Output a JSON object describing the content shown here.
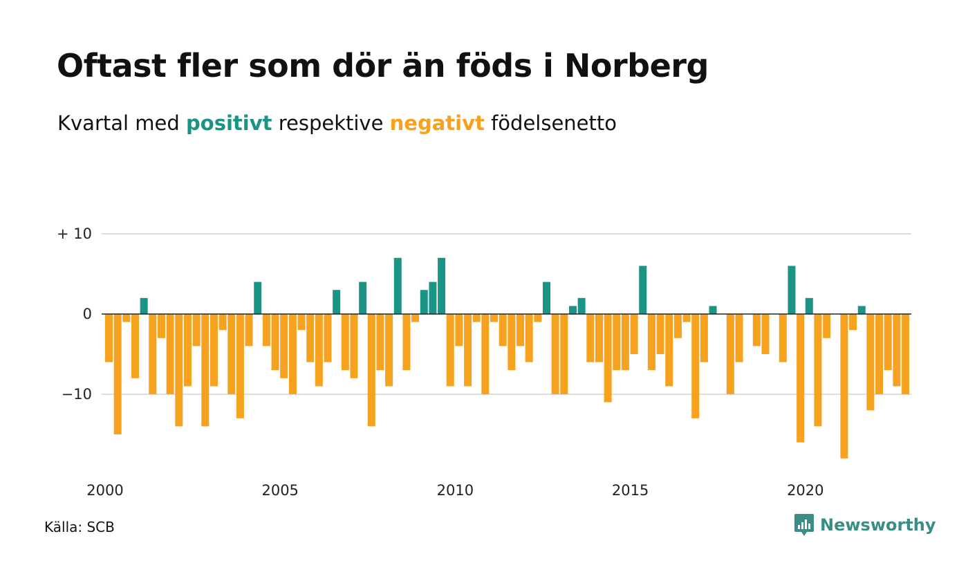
{
  "title": "Oftast fler som dör än föds i Norberg",
  "subtitle": {
    "prefix": "Kvartal med ",
    "positive_word": "positivt",
    "middle": " respektive ",
    "negative_word": "negativt",
    "suffix": " födelsenetto"
  },
  "source": "Källa: SCB",
  "brand": {
    "name": "Newsworthy",
    "icon": "newsworthy-logo-icon"
  },
  "colors": {
    "positive": "#1a9585",
    "negative": "#f7a21e",
    "grid": "#dddddd",
    "zero_line": "#222222",
    "brand": "#3a8d86"
  },
  "chart_data": {
    "type": "bar",
    "title": "Oftast fler som dör än föds i Norberg",
    "xlabel": "",
    "ylabel": "",
    "ylim": [
      -19,
      10
    ],
    "yticks": [
      {
        "value": 10,
        "label": "+ 10"
      },
      {
        "value": 0,
        "label": "0"
      },
      {
        "value": -10,
        "label": "−10"
      }
    ],
    "xticks": [
      {
        "value": 2000,
        "label": "2000"
      },
      {
        "value": 2005,
        "label": "2005"
      },
      {
        "value": 2010,
        "label": "2010"
      },
      {
        "value": 2015,
        "label": "2015"
      },
      {
        "value": 2020,
        "label": "2020"
      }
    ],
    "grid": true,
    "x_start_year": 2000,
    "values": [
      -6,
      -15,
      -1,
      -8,
      2,
      -10,
      -3,
      -10,
      -14,
      -9,
      -4,
      -14,
      -9,
      -2,
      -10,
      -13,
      -4,
      4,
      -4,
      -7,
      -8,
      -10,
      -2,
      -6,
      -9,
      -6,
      3,
      -7,
      -8,
      4,
      -14,
      -7,
      -9,
      7,
      -7,
      -1,
      3,
      4,
      7,
      -9,
      -4,
      -9,
      -1,
      -10,
      -1,
      -4,
      -7,
      -4,
      -6,
      -1,
      4,
      -10,
      -10,
      1,
      2,
      -6,
      -6,
      -11,
      -7,
      -7,
      -5,
      6,
      -7,
      -5,
      -9,
      -3,
      -1,
      -13,
      -6,
      1,
      0,
      -10,
      -6,
      0,
      -4,
      -5,
      0,
      -6,
      6,
      -16,
      2,
      -14,
      -3,
      0,
      -18,
      -2,
      1,
      -12,
      -10,
      -7,
      -9,
      -10
    ]
  }
}
